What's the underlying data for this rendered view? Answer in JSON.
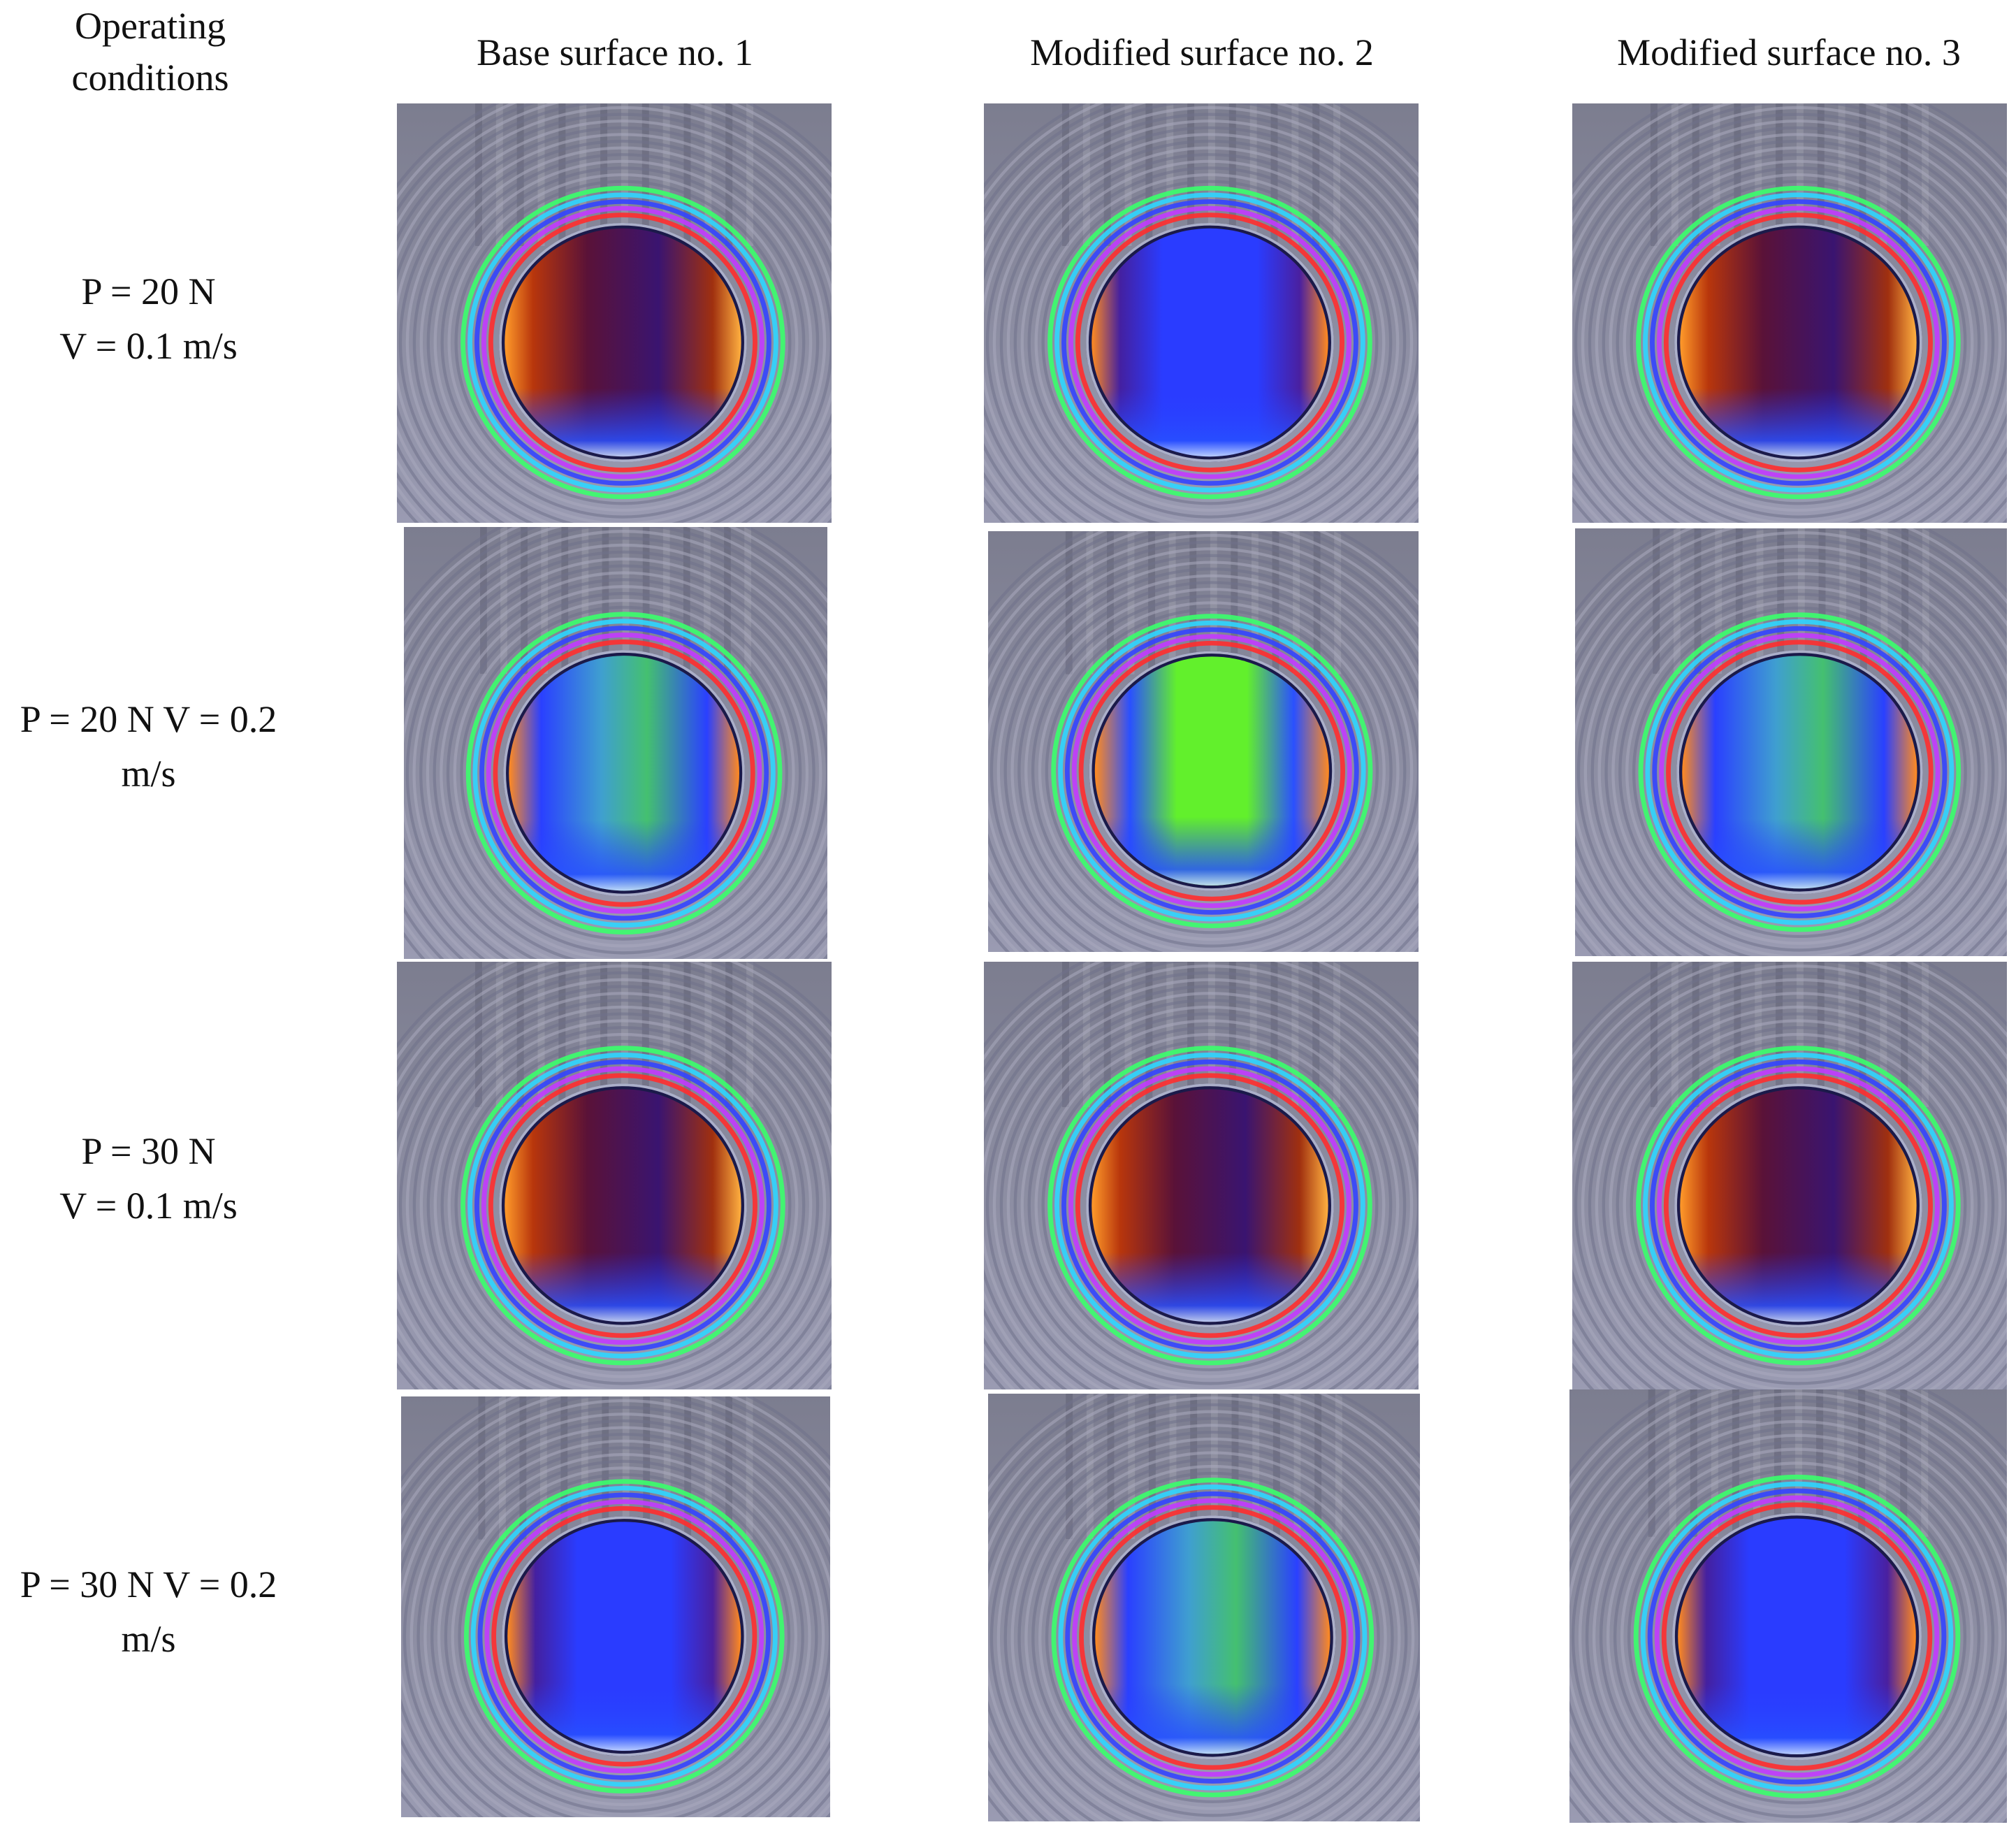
{
  "header": {
    "operating_conditions": [
      "Operating",
      "conditions"
    ],
    "columns": [
      "Base surface no. 1",
      "Modified surface no. 2",
      "Modified surface no. 3"
    ]
  },
  "rows": [
    {
      "lines": [
        "P = 20 N",
        "V = 0.1 m/s"
      ]
    },
    {
      "lines": [
        "P = 20 N V = 0.2",
        "m/s"
      ]
    },
    {
      "lines": [
        "P = 30 N",
        "V = 0.1 m/s"
      ]
    },
    {
      "lines": [
        "P = 30 N V = 0.2",
        "m/s"
      ]
    }
  ],
  "images": [
    [
      "orange-contact",
      "blue-contact",
      "orange-contact"
    ],
    [
      "blue-green-contact",
      "green-contact",
      "blue-green-contact"
    ],
    [
      "orange-contact",
      "orange-contact",
      "orange-contact"
    ],
    [
      "blue-contact",
      "blue-green-contact",
      "blue-contact"
    ]
  ],
  "colors": {
    "orange_contact": "#7a1e08",
    "blue_contact": "#2a38ff",
    "green_contact": "#66f22a",
    "background": "#8f90a6"
  }
}
